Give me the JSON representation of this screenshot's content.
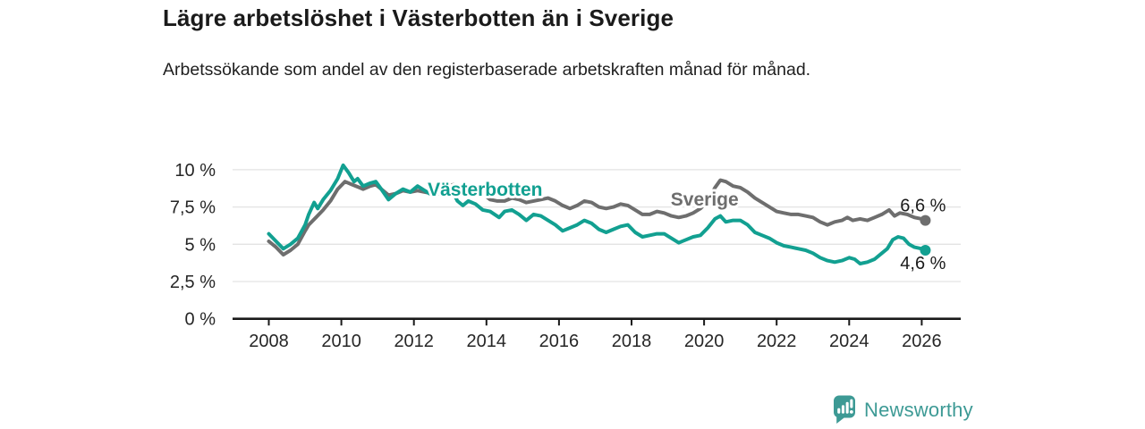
{
  "header": {
    "title": "Lägre arbetslöshet i Västerbotten än i Sverige",
    "subtitle": "Arbetssökande som andel av den registerbaserade arbetskraften månad för månad."
  },
  "footer": {
    "brand": "Newsworthy",
    "brand_color": "#3d9a95",
    "logo_icon": "bar-chart-speech-bubble-icon"
  },
  "chart_data": {
    "type": "line",
    "title": "Lägre arbetslöshet i Västerbotten än i Sverige",
    "subtitle": "Arbetssökande som andel av den registerbaserade arbetskraften månad för månad.",
    "xlabel": "",
    "ylabel": "",
    "grid": "horizontal",
    "legend_position": "inline-labels",
    "x_axis": {
      "range": [
        2007.05,
        2027.1
      ],
      "ticks": [
        2008,
        2010,
        2012,
        2014,
        2016,
        2018,
        2020,
        2022,
        2024,
        2026
      ]
    },
    "y_axis": {
      "range": [
        0,
        10.8
      ],
      "ticks": [
        {
          "value": 0,
          "label": "0 %"
        },
        {
          "value": 2.5,
          "label": "2,5 %"
        },
        {
          "value": 5,
          "label": "5 %"
        },
        {
          "value": 7.5,
          "label": "7,5 %"
        },
        {
          "value": 10,
          "label": "10 %"
        }
      ]
    },
    "series": [
      {
        "id": "sverige",
        "name": "Sverige",
        "color": "#6e6e6e",
        "end_label": "6,6 %",
        "last_value": 6.6,
        "label_at": {
          "year": 2019.08,
          "pct": 7.6
        },
        "end_label_offset": {
          "dx": 23,
          "dy": -10
        },
        "points": [
          [
            2008.0,
            5.2
          ],
          [
            2008.2,
            4.8
          ],
          [
            2008.4,
            4.3
          ],
          [
            2008.6,
            4.6
          ],
          [
            2008.8,
            5.0
          ],
          [
            2009.0,
            5.9
          ],
          [
            2009.1,
            6.3
          ],
          [
            2009.3,
            6.8
          ],
          [
            2009.5,
            7.3
          ],
          [
            2009.7,
            7.9
          ],
          [
            2009.9,
            8.7
          ],
          [
            2010.1,
            9.2
          ],
          [
            2010.3,
            9.0
          ],
          [
            2010.5,
            8.8
          ],
          [
            2010.6,
            8.7
          ],
          [
            2010.8,
            8.9
          ],
          [
            2010.95,
            9.0
          ],
          [
            2011.1,
            8.7
          ],
          [
            2011.3,
            8.3
          ],
          [
            2011.5,
            8.4
          ],
          [
            2011.7,
            8.6
          ],
          [
            2011.9,
            8.5
          ],
          [
            2012.1,
            8.6
          ],
          [
            2012.3,
            8.5
          ],
          [
            2012.5,
            8.4
          ],
          [
            2012.7,
            8.6
          ],
          [
            2012.9,
            8.9
          ],
          [
            2013.1,
            9.0
          ],
          [
            2013.3,
            8.8
          ],
          [
            2013.5,
            8.7
          ],
          [
            2013.7,
            8.8
          ],
          [
            2013.9,
            8.4
          ],
          [
            2014.1,
            8.0
          ],
          [
            2014.3,
            7.9
          ],
          [
            2014.5,
            7.9
          ],
          [
            2014.7,
            8.1
          ],
          [
            2014.9,
            8.0
          ],
          [
            2015.1,
            7.8
          ],
          [
            2015.3,
            7.9
          ],
          [
            2015.5,
            8.0
          ],
          [
            2015.7,
            8.1
          ],
          [
            2015.9,
            7.9
          ],
          [
            2016.1,
            7.6
          ],
          [
            2016.3,
            7.4
          ],
          [
            2016.5,
            7.6
          ],
          [
            2016.7,
            7.9
          ],
          [
            2016.9,
            7.8
          ],
          [
            2017.1,
            7.5
          ],
          [
            2017.3,
            7.4
          ],
          [
            2017.5,
            7.5
          ],
          [
            2017.7,
            7.7
          ],
          [
            2017.9,
            7.6
          ],
          [
            2018.1,
            7.3
          ],
          [
            2018.3,
            7.0
          ],
          [
            2018.5,
            7.0
          ],
          [
            2018.7,
            7.2
          ],
          [
            2018.9,
            7.1
          ],
          [
            2019.1,
            6.9
          ],
          [
            2019.3,
            6.8
          ],
          [
            2019.5,
            6.9
          ],
          [
            2019.7,
            7.1
          ],
          [
            2019.9,
            7.4
          ],
          [
            2020.1,
            7.9
          ],
          [
            2020.3,
            8.8
          ],
          [
            2020.45,
            9.3
          ],
          [
            2020.6,
            9.2
          ],
          [
            2020.8,
            8.9
          ],
          [
            2021.0,
            8.8
          ],
          [
            2021.2,
            8.5
          ],
          [
            2021.4,
            8.1
          ],
          [
            2021.6,
            7.8
          ],
          [
            2021.8,
            7.5
          ],
          [
            2022.0,
            7.2
          ],
          [
            2022.2,
            7.1
          ],
          [
            2022.4,
            7.0
          ],
          [
            2022.6,
            7.0
          ],
          [
            2022.8,
            6.9
          ],
          [
            2023.0,
            6.8
          ],
          [
            2023.2,
            6.5
          ],
          [
            2023.4,
            6.3
          ],
          [
            2023.6,
            6.5
          ],
          [
            2023.8,
            6.6
          ],
          [
            2023.95,
            6.8
          ],
          [
            2024.1,
            6.6
          ],
          [
            2024.3,
            6.7
          ],
          [
            2024.5,
            6.6
          ],
          [
            2024.7,
            6.8
          ],
          [
            2024.9,
            7.0
          ],
          [
            2025.1,
            7.3
          ],
          [
            2025.25,
            6.9
          ],
          [
            2025.4,
            7.1
          ],
          [
            2025.6,
            7.0
          ],
          [
            2025.8,
            6.8
          ],
          [
            2026.0,
            6.7
          ],
          [
            2026.1,
            6.6
          ]
        ]
      },
      {
        "id": "vasterbotten",
        "name": "Västerbotten",
        "color": "#12a091",
        "end_label": "4,6 %",
        "last_value": 4.6,
        "label_at": {
          "year": 2012.38,
          "pct": 8.26
        },
        "end_label_offset": {
          "dx": 23,
          "dy": 21
        },
        "points": [
          [
            2008.0,
            5.7
          ],
          [
            2008.2,
            5.2
          ],
          [
            2008.4,
            4.7
          ],
          [
            2008.6,
            5.0
          ],
          [
            2008.8,
            5.4
          ],
          [
            2009.0,
            6.3
          ],
          [
            2009.1,
            7.0
          ],
          [
            2009.25,
            7.8
          ],
          [
            2009.35,
            7.4
          ],
          [
            2009.5,
            8.0
          ],
          [
            2009.7,
            8.6
          ],
          [
            2009.9,
            9.4
          ],
          [
            2010.05,
            10.3
          ],
          [
            2010.2,
            9.8
          ],
          [
            2010.35,
            9.2
          ],
          [
            2010.45,
            9.4
          ],
          [
            2010.6,
            8.9
          ],
          [
            2010.8,
            9.1
          ],
          [
            2010.95,
            9.2
          ],
          [
            2011.1,
            8.7
          ],
          [
            2011.3,
            8.0
          ],
          [
            2011.5,
            8.4
          ],
          [
            2011.7,
            8.7
          ],
          [
            2011.9,
            8.5
          ],
          [
            2012.1,
            8.9
          ],
          [
            2012.3,
            8.6
          ],
          [
            2012.5,
            8.3
          ],
          [
            2012.7,
            8.4
          ],
          [
            2012.9,
            8.7
          ],
          [
            2013.05,
            8.6
          ],
          [
            2013.2,
            7.9
          ],
          [
            2013.35,
            7.6
          ],
          [
            2013.5,
            7.9
          ],
          [
            2013.7,
            7.7
          ],
          [
            2013.9,
            7.3
          ],
          [
            2014.1,
            7.2
          ],
          [
            2014.35,
            6.8
          ],
          [
            2014.5,
            7.2
          ],
          [
            2014.7,
            7.3
          ],
          [
            2014.9,
            7.0
          ],
          [
            2015.1,
            6.6
          ],
          [
            2015.3,
            7.0
          ],
          [
            2015.5,
            6.9
          ],
          [
            2015.7,
            6.6
          ],
          [
            2015.9,
            6.3
          ],
          [
            2016.1,
            5.9
          ],
          [
            2016.3,
            6.1
          ],
          [
            2016.5,
            6.3
          ],
          [
            2016.7,
            6.6
          ],
          [
            2016.9,
            6.4
          ],
          [
            2017.1,
            6.0
          ],
          [
            2017.3,
            5.8
          ],
          [
            2017.5,
            6.0
          ],
          [
            2017.7,
            6.2
          ],
          [
            2017.9,
            6.3
          ],
          [
            2018.1,
            5.8
          ],
          [
            2018.3,
            5.5
          ],
          [
            2018.5,
            5.6
          ],
          [
            2018.7,
            5.7
          ],
          [
            2018.9,
            5.7
          ],
          [
            2019.1,
            5.4
          ],
          [
            2019.3,
            5.1
          ],
          [
            2019.5,
            5.3
          ],
          [
            2019.7,
            5.5
          ],
          [
            2019.9,
            5.6
          ],
          [
            2020.1,
            6.1
          ],
          [
            2020.3,
            6.7
          ],
          [
            2020.45,
            6.9
          ],
          [
            2020.6,
            6.5
          ],
          [
            2020.8,
            6.6
          ],
          [
            2021.0,
            6.6
          ],
          [
            2021.2,
            6.3
          ],
          [
            2021.4,
            5.8
          ],
          [
            2021.6,
            5.6
          ],
          [
            2021.8,
            5.4
          ],
          [
            2022.0,
            5.1
          ],
          [
            2022.2,
            4.9
          ],
          [
            2022.4,
            4.8
          ],
          [
            2022.6,
            4.7
          ],
          [
            2022.8,
            4.6
          ],
          [
            2023.0,
            4.4
          ],
          [
            2023.2,
            4.1
          ],
          [
            2023.4,
            3.9
          ],
          [
            2023.6,
            3.8
          ],
          [
            2023.8,
            3.9
          ],
          [
            2024.0,
            4.1
          ],
          [
            2024.15,
            4.0
          ],
          [
            2024.3,
            3.7
          ],
          [
            2024.5,
            3.8
          ],
          [
            2024.7,
            4.0
          ],
          [
            2024.9,
            4.4
          ],
          [
            2025.05,
            4.7
          ],
          [
            2025.2,
            5.3
          ],
          [
            2025.35,
            5.5
          ],
          [
            2025.5,
            5.4
          ],
          [
            2025.65,
            5.0
          ],
          [
            2025.8,
            4.8
          ],
          [
            2026.0,
            4.7
          ],
          [
            2026.1,
            4.6
          ]
        ]
      }
    ]
  }
}
